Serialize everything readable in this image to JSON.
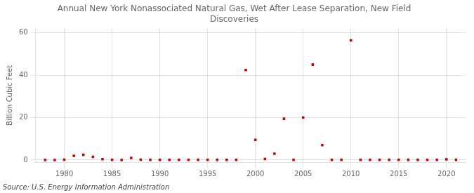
{
  "chart_data": {
    "type": "scatter",
    "title": "Annual New York Nonassociated Natural Gas, Wet After Lease Separation, New Field\nDiscoveries",
    "ylabel": "Billion Cubic Feet",
    "source": "Source: U.S. Energy Information Administration",
    "color": "#cc0000",
    "marker": "square",
    "grid": true,
    "xlim": [
      1977,
      2022
    ],
    "ylim": [
      -1,
      62
    ],
    "xticks": [
      1980,
      1985,
      1990,
      1995,
      2000,
      2005,
      2010,
      2015,
      2020
    ],
    "yticks": [
      0,
      20,
      40,
      60
    ],
    "x": [
      1978,
      1979,
      1980,
      1981,
      1982,
      1983,
      1984,
      1985,
      1986,
      1987,
      1988,
      1989,
      1990,
      1991,
      1992,
      1993,
      1994,
      1995,
      1996,
      1997,
      1998,
      1999,
      2000,
      2001,
      2002,
      2003,
      2004,
      2005,
      2006,
      2007,
      2008,
      2009,
      2010,
      2011,
      2012,
      2013,
      2014,
      2015,
      2016,
      2017,
      2018,
      2019,
      2020,
      2021
    ],
    "values": [
      0.0,
      0.0,
      0.15,
      2.0,
      2.5,
      1.5,
      0.4,
      0.1,
      0.0,
      1.0,
      0.15,
      0.1,
      0.1,
      0.1,
      0.1,
      0.1,
      0.1,
      0.1,
      0.1,
      0.1,
      0.1,
      42.5,
      9.5,
      0.5,
      3.0,
      19.5,
      0.1,
      20.0,
      45.0,
      7.0,
      0.1,
      0.1,
      56.5,
      0.1,
      0.1,
      0.1,
      0.1,
      0.1,
      0.1,
      0.1,
      0.1,
      0.1,
      0.3,
      0.1
    ]
  }
}
